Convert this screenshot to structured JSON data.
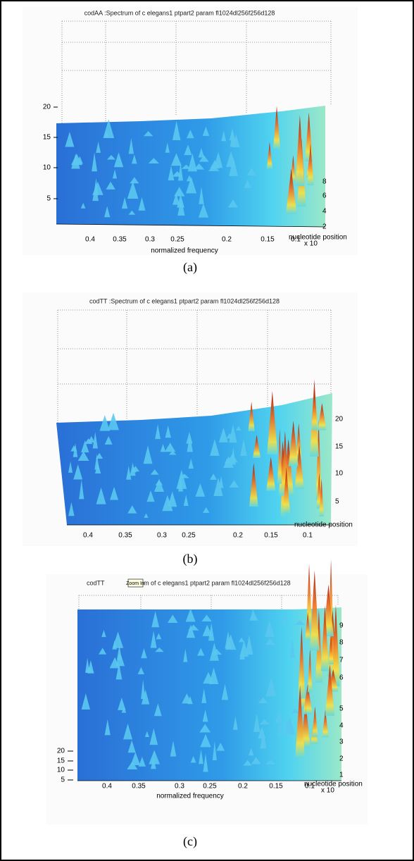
{
  "panels": [
    {
      "title": "codAA  :Spectrum of c elegans1 ptpart2 param fl1024dl256f256d128",
      "z_ticks": [
        "20",
        "15",
        "10",
        "5"
      ],
      "x_ticks": [
        "0.4",
        "0.35",
        "0.3",
        "0.25",
        "0.2",
        "0.15",
        "0.1"
      ],
      "y_ticks": [
        "8",
        "6",
        "4",
        "2"
      ],
      "y_label": "nucleotide position",
      "y_multiplier": "x 10",
      "x_label": "normalized frequency",
      "caption": "(a)"
    },
    {
      "title": "codTT  :Spectrum of c elegans1 ptpart2 param fl1024dl256f256d128",
      "z_ticks": [
        "20",
        "15",
        "10",
        "5"
      ],
      "x_ticks": [
        "0.4",
        "0.35",
        "0.3",
        "0.25",
        "0.2",
        "0.15",
        "0.1"
      ],
      "y_label": "nucleotide position",
      "caption": "(b)"
    },
    {
      "title_start": "codTT",
      "tooltip": "Zoom In",
      "title_end": "m of c elegans1 ptpart2 param fl1024dl256f256d128",
      "z_ticks": [
        "20",
        "15",
        "10",
        "5"
      ],
      "x_ticks": [
        "0.4",
        "0.35",
        "0.3",
        "0.25",
        "0.2",
        "0.15",
        "0.1"
      ],
      "y_ticks": [
        "9",
        "8",
        "7",
        "6",
        "5",
        "4",
        "3",
        "2",
        "1"
      ],
      "y_label": "nucleotide position",
      "y_multiplier": "x 10",
      "x_label": "normalized frequency",
      "caption": "(c)"
    }
  ]
}
